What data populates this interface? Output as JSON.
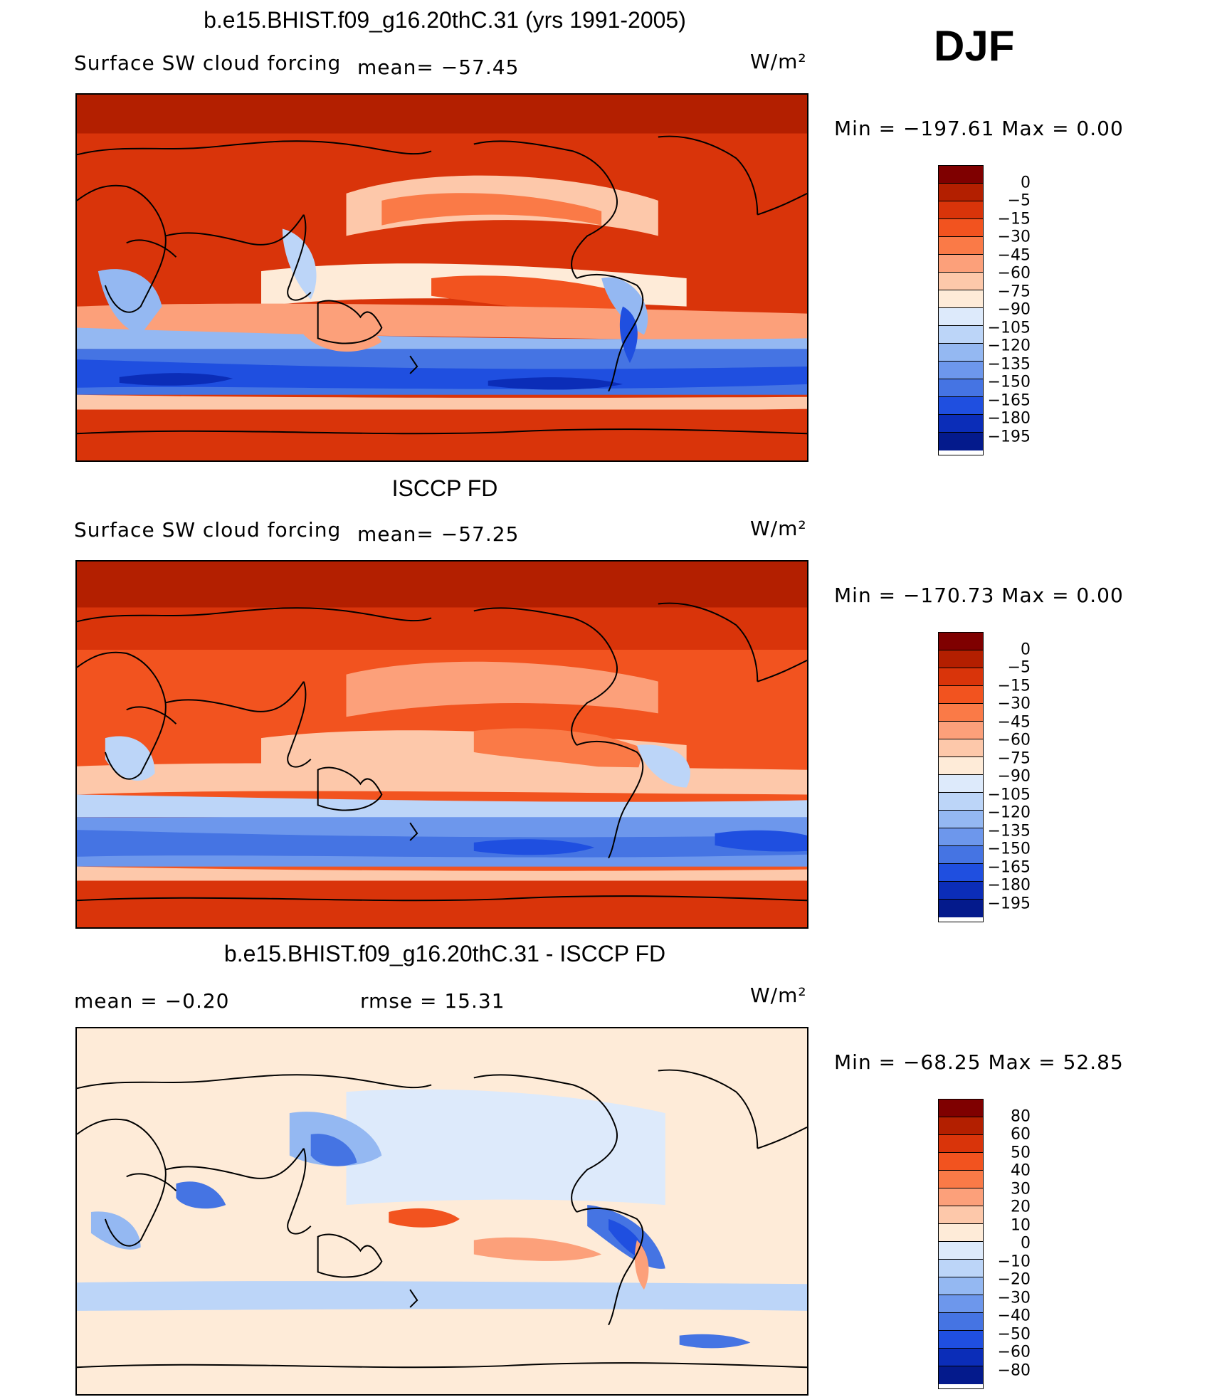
{
  "season": "DJF",
  "panels": [
    {
      "title": "b.e15.BHIST.f09_g16.20thC.31 (yrs 1991-2005)",
      "left_label": "Surface SW cloud forcing",
      "mean_label": "mean= −57.45",
      "units_label": "W/m²",
      "minmax": "Min = −197.61 Max =   0.00",
      "colorbar": {
        "colors": [
          "#7f0000",
          "#b31f00",
          "#d9340a",
          "#f2531f",
          "#fa7a47",
          "#fca07a",
          "#fdc8aa",
          "#feebd8",
          "#ddeafb",
          "#bcd5f8",
          "#94b8f2",
          "#6d97ec",
          "#4574e3",
          "#1f4fe0",
          "#0b2db8",
          "#041a8c"
        ],
        "labels": [
          "0",
          "−5",
          "−15",
          "−30",
          "−45",
          "−60",
          "−75",
          "−90",
          "−105",
          "−120",
          "−135",
          "−150",
          "−165",
          "−180",
          "−195"
        ]
      }
    },
    {
      "title": "ISCCP FD",
      "left_label": "Surface SW cloud forcing",
      "mean_label": "mean= −57.25",
      "units_label": "W/m²",
      "minmax": "Min = −170.73 Max =   0.00",
      "colorbar": {
        "colors": [
          "#7f0000",
          "#b31f00",
          "#d9340a",
          "#f2531f",
          "#fa7a47",
          "#fca07a",
          "#fdc8aa",
          "#feebd8",
          "#ddeafb",
          "#bcd5f8",
          "#94b8f2",
          "#6d97ec",
          "#4574e3",
          "#1f4fe0",
          "#0b2db8",
          "#041a8c"
        ],
        "labels": [
          "0",
          "−5",
          "−15",
          "−30",
          "−45",
          "−60",
          "−75",
          "−90",
          "−105",
          "−120",
          "−135",
          "−150",
          "−165",
          "−180",
          "−195"
        ]
      }
    },
    {
      "title": "b.e15.BHIST.f09_g16.20thC.31 - ISCCP FD",
      "left_label": "mean =   −0.20",
      "mean_label": "rmse =   15.31",
      "units_label": "W/m²",
      "minmax": "Min = −68.25 Max =  52.85",
      "colorbar": {
        "colors": [
          "#7f0000",
          "#b31f00",
          "#d9340a",
          "#f2531f",
          "#fa7a47",
          "#fca07a",
          "#fdc8aa",
          "#feebd8",
          "#ddeafb",
          "#bcd5f8",
          "#94b8f2",
          "#6d97ec",
          "#4574e3",
          "#1f4fe0",
          "#0b2db8",
          "#041a8c"
        ],
        "labels": [
          "80",
          "60",
          "50",
          "40",
          "30",
          "20",
          "10",
          "0",
          "−10",
          "−20",
          "−30",
          "−40",
          "−50",
          "−60",
          "−80"
        ]
      }
    }
  ]
}
